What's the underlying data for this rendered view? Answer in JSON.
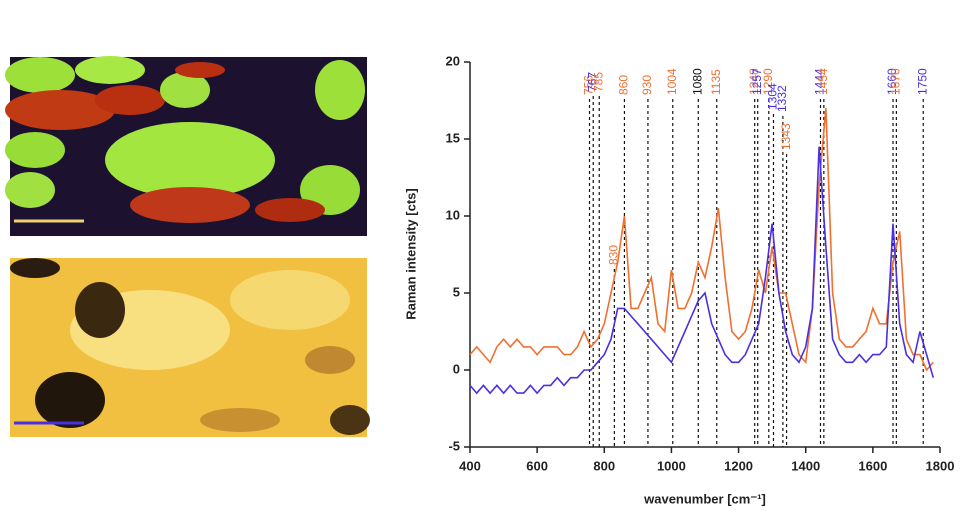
{
  "chart_data": {
    "type": "line",
    "xlabel": "wavenumber [cm⁻¹]",
    "ylabel": "Raman intensity [cts]",
    "x": [
      400,
      420,
      440,
      460,
      480,
      500,
      520,
      540,
      560,
      580,
      600,
      620,
      640,
      660,
      680,
      700,
      720,
      740,
      760,
      780,
      800,
      820,
      840,
      860,
      880,
      900,
      920,
      940,
      960,
      980,
      1000,
      1020,
      1040,
      1060,
      1080,
      1100,
      1120,
      1140,
      1160,
      1180,
      1200,
      1220,
      1240,
      1260,
      1280,
      1300,
      1320,
      1340,
      1360,
      1380,
      1400,
      1420,
      1440,
      1460,
      1480,
      1500,
      1520,
      1540,
      1560,
      1580,
      1600,
      1620,
      1640,
      1660,
      1680,
      1700,
      1720,
      1740,
      1760,
      1780
    ],
    "series": [
      {
        "color": "#f07030",
        "values": [
          1,
          1.5,
          1,
          0.5,
          1.5,
          2,
          1.5,
          2,
          1.5,
          1.5,
          1,
          1.5,
          1.5,
          1.5,
          1,
          1,
          1.5,
          2.5,
          1.5,
          2,
          3,
          5,
          7,
          10,
          4,
          4,
          5,
          6,
          3,
          2.5,
          6.5,
          4,
          4,
          5,
          7,
          6,
          8,
          10.5,
          6,
          2.5,
          2,
          2.5,
          4,
          6.5,
          5,
          8,
          5,
          5,
          3,
          1,
          0.5,
          4,
          12,
          17,
          5,
          2,
          1.5,
          1.5,
          2,
          2.5,
          4,
          3,
          3,
          7,
          9,
          2,
          1,
          1,
          0,
          0.5
        ]
      },
      {
        "color": "#4a30e0",
        "values": [
          -1,
          -1.5,
          -1,
          -1.5,
          -1,
          -1.5,
          -1,
          -1.5,
          -1.5,
          -1,
          -1.5,
          -1,
          -1,
          -0.5,
          -1,
          -0.5,
          -0.5,
          0,
          0,
          0.5,
          1,
          2,
          4,
          4,
          3.5,
          3,
          2.5,
          2,
          1.5,
          1,
          0.5,
          1.5,
          2.5,
          3.5,
          4.5,
          5,
          3,
          2,
          1,
          0.5,
          0.5,
          1,
          2,
          3,
          6,
          9.5,
          5,
          2.5,
          1,
          0.5,
          1.5,
          4,
          14.5,
          8,
          2,
          1,
          0.5,
          0.5,
          1,
          0.5,
          1,
          1,
          1.5,
          9.5,
          3,
          1,
          0.5,
          2.5,
          1,
          -0.5
        ]
      }
    ],
    "peaks": [
      {
        "x": 756,
        "color": "#f07030"
      },
      {
        "x": 767,
        "color": "#4a30e0"
      },
      {
        "x": 785,
        "color": "#f07030"
      },
      {
        "x": 830,
        "color": "#f07030"
      },
      {
        "x": 860,
        "color": "#f07030"
      },
      {
        "x": 930,
        "color": "#f07030"
      },
      {
        "x": 1004,
        "color": "#f07030"
      },
      {
        "x": 1080,
        "color": "#111111"
      },
      {
        "x": 1135,
        "color": "#f07030"
      },
      {
        "x": 1248,
        "color": "#f07030"
      },
      {
        "x": 1257,
        "color": "#4a30e0"
      },
      {
        "x": 1290,
        "color": "#f07030"
      },
      {
        "x": 1304,
        "color": "#4a30e0"
      },
      {
        "x": 1332,
        "color": "#4a30e0"
      },
      {
        "x": 1343,
        "color": "#f07030"
      },
      {
        "x": 1444,
        "color": "#4a30e0"
      },
      {
        "x": 1454,
        "color": "#f07030"
      },
      {
        "x": 1660,
        "color": "#4a30e0"
      },
      {
        "x": 1670,
        "color": "#f07030"
      },
      {
        "x": 1750,
        "color": "#4a30e0"
      }
    ],
    "xlim": [
      400,
      1800
    ],
    "xticks": [
      400,
      600,
      800,
      1000,
      1200,
      1400,
      1600,
      1800
    ],
    "ylim": [
      -5,
      20
    ],
    "yticks": [
      -5,
      0,
      5,
      10,
      15,
      20
    ]
  }
}
